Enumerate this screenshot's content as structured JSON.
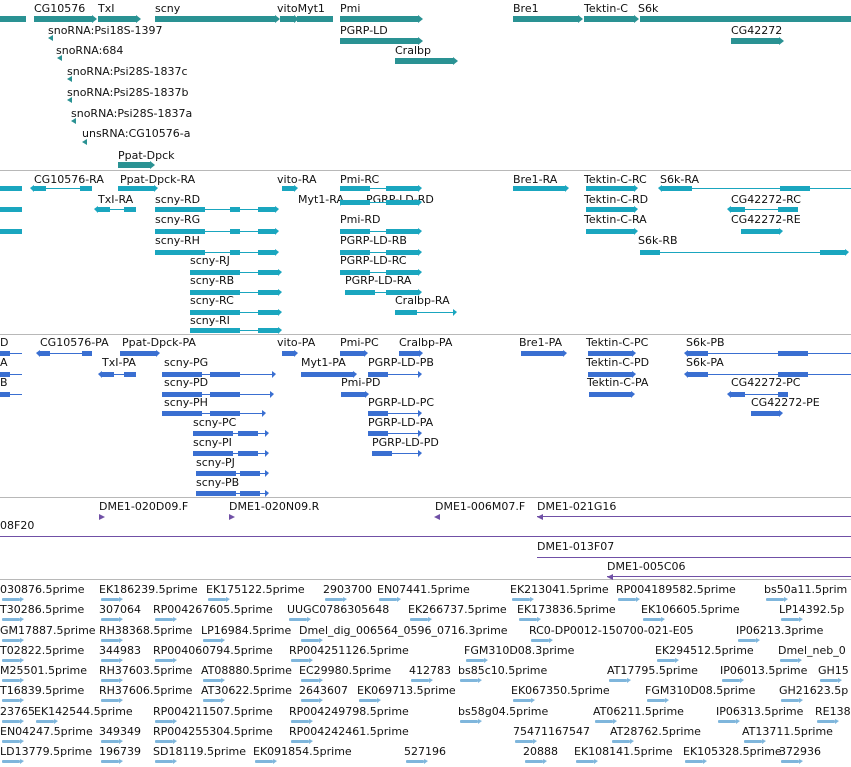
{
  "colors": {
    "gene": "#2a9293",
    "transcript": "#1aa6bf",
    "cds": "#3a6fd1",
    "clone": "#7050a6",
    "est": "#7fb6dc",
    "text": "#111111",
    "divider": "#b8b8b8"
  },
  "tracks": {
    "genes": [
      "CG10576",
      "TxI",
      "scny",
      "vitoMyt1",
      "Pmi",
      "Bre1",
      "Tektin-C",
      "S6k",
      "snoRNA:Psi18S-1397",
      "PGRP-LD",
      "CG42272",
      "snoRNA:684",
      "Cralbp",
      "snoRNA:Psi28S-1837c",
      "snoRNA:Psi28S-1837b",
      "snoRNA:Psi28S-1837a",
      "unsRNA:CG10576-a",
      "Ppat-Dpck"
    ],
    "transcripts": [
      "CG10576-RA",
      "Ppat-Dpck-RA",
      "vito-RA",
      "Pmi-RC",
      "Bre1-RA",
      "Tektin-C-RC",
      "S6k-RA",
      "TxI-RA",
      "scny-RD",
      "Myt1-RA",
      "PGRP-LD-RD",
      "Tektin-C-RD",
      "CG42272-RC",
      "scny-RG",
      "Pmi-RD",
      "Tektin-C-RA",
      "CG42272-RE",
      "scny-RH",
      "PGRP-LD-RB",
      "S6k-RB",
      "scny-RJ",
      "PGRP-LD-RC",
      "scny-RB",
      "PGRP-LD-RA",
      "scny-RC",
      "Cralbp-RA",
      "scny-RI"
    ],
    "proteins": [
      "D",
      "CG10576-PA",
      "Ppat-Dpck-PA",
      "vito-PA",
      "Pmi-PC",
      "Cralbp-PA",
      "Bre1-PA",
      "Tektin-C-PC",
      "S6k-PB",
      "A",
      "TxI-PA",
      "scny-PG",
      "Myt1-PA",
      "PGRP-LD-PB",
      "Tektin-C-PD",
      "S6k-PA",
      "B",
      "scny-PD",
      "Pmi-PD",
      "Tektin-C-PA",
      "CG42272-PC",
      "scny-PH",
      "PGRP-LD-PC",
      "CG42272-PE",
      "scny-PC",
      "PGRP-LD-PA",
      "scny-PI",
      "PGRP-LD-PD",
      "scny-PJ",
      "scny-PB"
    ],
    "clones": [
      "DME1-020D09.F",
      "DME1-020N09.R",
      "DME1-006M07.F",
      "DME1-021G16",
      "08F20",
      "DME1-013F07",
      "DME1-005C06"
    ],
    "ests": [
      "030876.5prime",
      "EK186239.5prime",
      "EK175122.5prime",
      "2903700",
      "EN07441.5prime",
      "EK213041.5prime",
      "RP004189582.5prime",
      "bs50a11.5prim",
      "T30286.5prime",
      "307064",
      "RP004267605.5prime",
      "UUGC0786305648",
      "EK266737.5prime",
      "EK173836.5prime",
      "EK106605.5prime",
      "LP14392.5p",
      "GM17887.5prime",
      "RH38368.5prime",
      "LP16984.5prime",
      "Dmel_dig_006564_0596_0716.3prime",
      "RC0-DP0012-150700-021-E05",
      "IP06213.3prime",
      "T02822.5prime",
      "344983",
      "RP004060794.5prime",
      "RP004251126.5prime",
      "FGM310D08.3prime",
      "EK294512.5prime",
      "Dmel_neb_0",
      "M25501.5prime",
      "RH37603.5prime",
      "AT08880.5prime",
      "EC29980.5prime",
      "412783",
      "bs85c10.5prime",
      "AT17795.5prime",
      "IP06013.5prime",
      "GH15",
      "T16839.5prime",
      "RH37606.5prime",
      "AT30622.5prime",
      "2643607",
      "EK069713.5prime",
      "EK067350.5prime",
      "FGM310D08.5prime",
      "GH21623.5p",
      "23765",
      "EK142544.5prime",
      "RP004211507.5prime",
      "RP004249798.5prime",
      "bs58g04.5prime",
      "AT06211.5prime",
      "IP06313.5prime",
      "RE138",
      "EN04247.5prime",
      "349349",
      "RP004255304.5prime",
      "RP004242461.5prime",
      "75471167547",
      "AT28762.5prime",
      "AT13711.5prime",
      "LD13779.5prime",
      "196739",
      "SD18119.5prime",
      "EK091854.5prime",
      "527196",
      "20888",
      "EK108141.5prime",
      "EK105328.5prime",
      "372936"
    ]
  }
}
